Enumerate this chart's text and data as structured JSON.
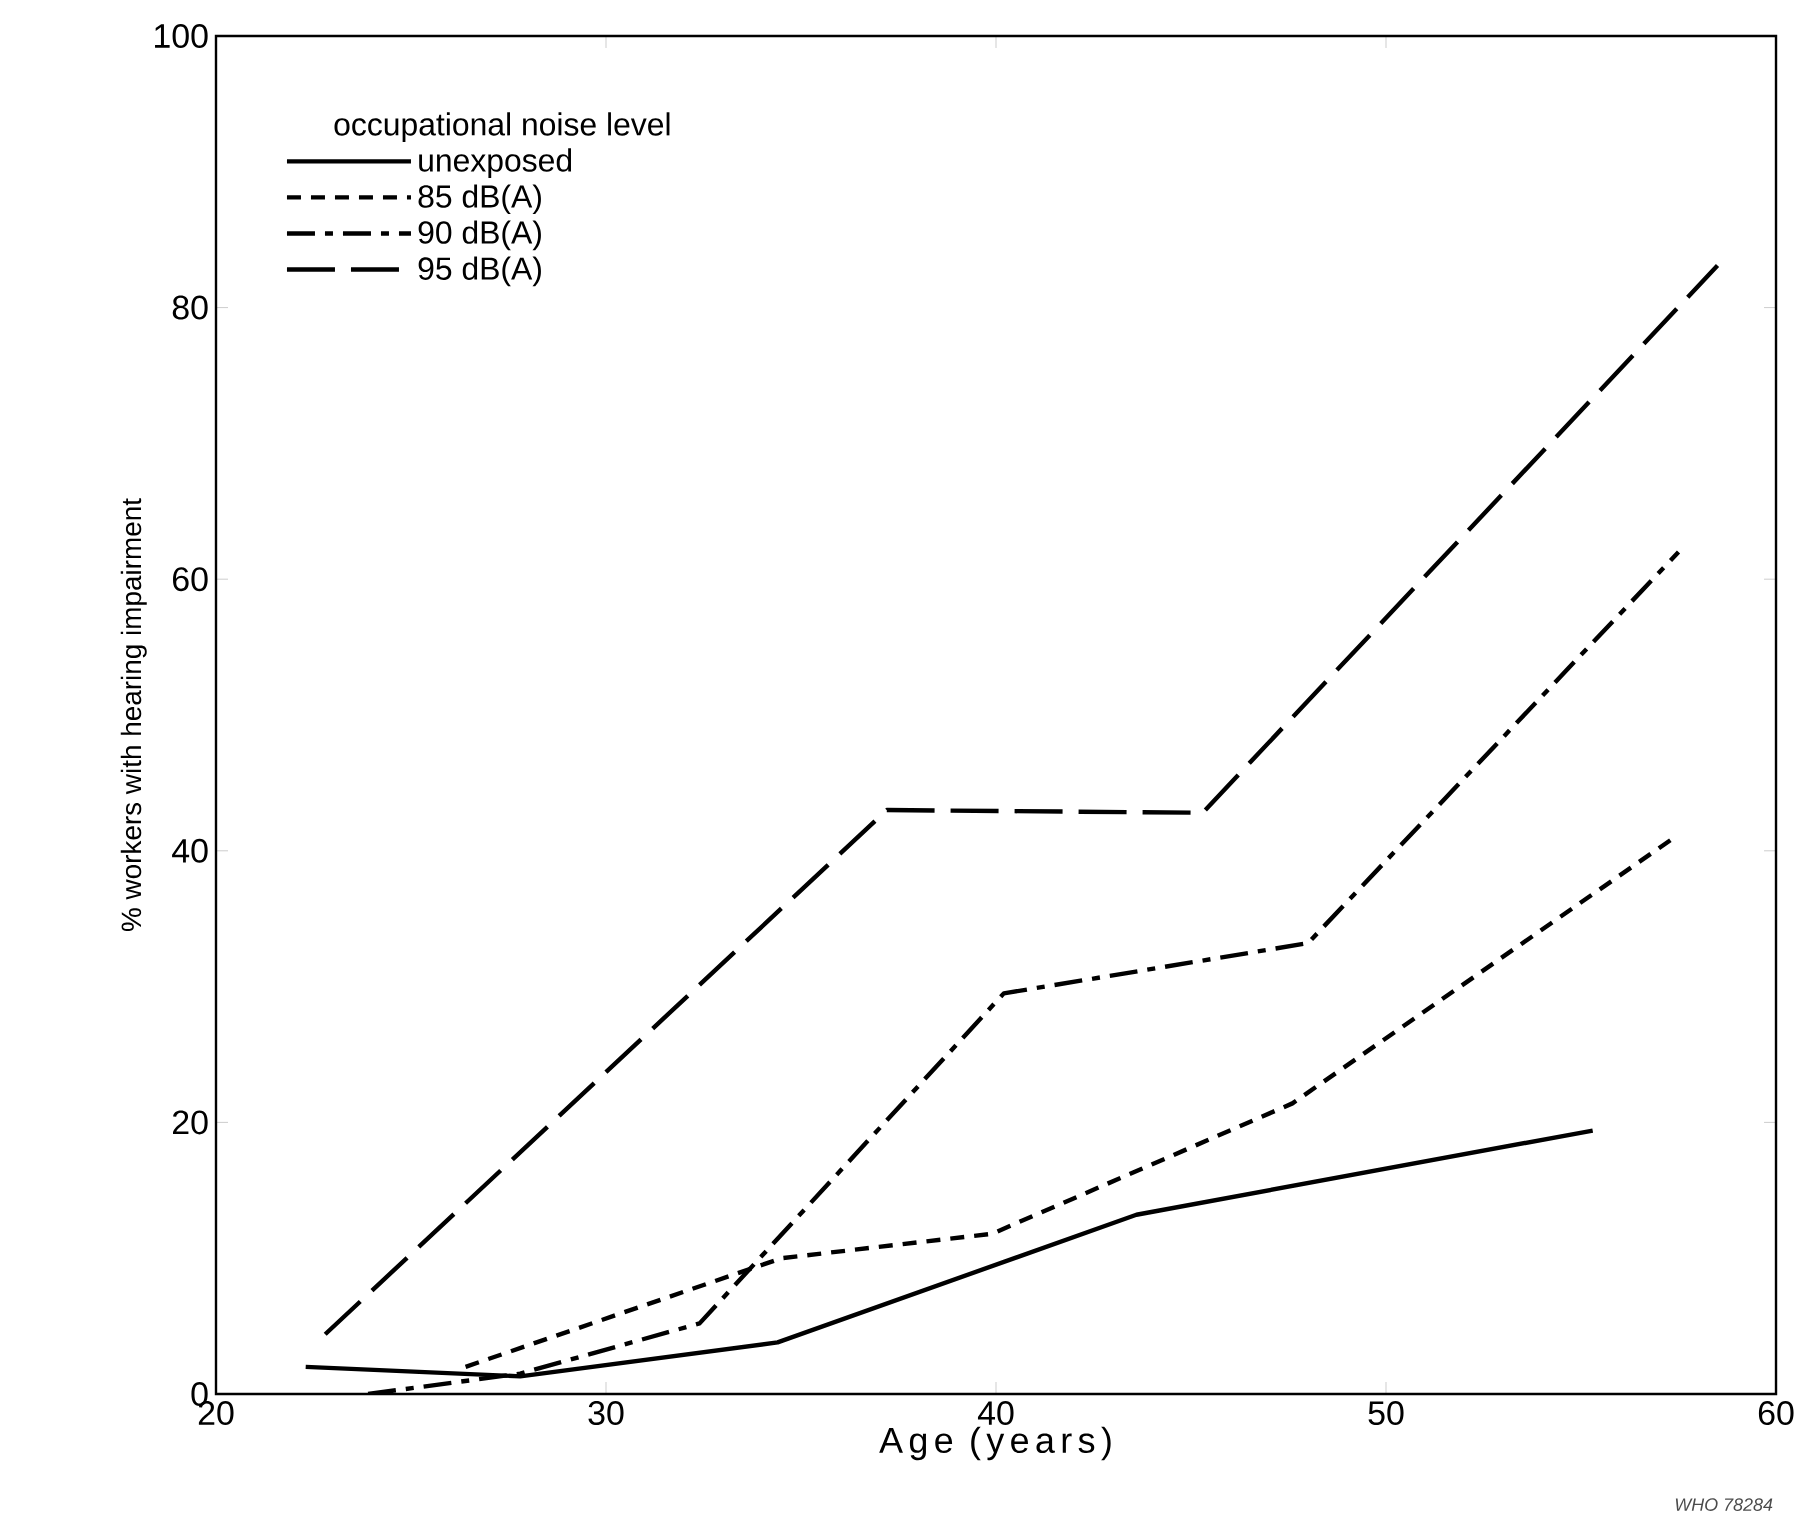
{
  "chart_data": {
    "type": "line",
    "xlabel": "Age (years)",
    "ylabel": "% workers with hearing impairment",
    "legend_title": "occupational noise level",
    "legend": "top left",
    "xlim": [
      20,
      60
    ],
    "ylim": [
      0,
      100
    ],
    "xticks": [
      20,
      30,
      40,
      50,
      60
    ],
    "yticks": [
      0,
      20,
      40,
      60,
      80,
      100
    ],
    "annotations": [
      "WHO 78284"
    ],
    "series": [
      {
        "name": "unexposed",
        "color": "#000000",
        "line_style": "solid",
        "x": [
          22.3,
          27.8,
          34.4,
          43.6,
          55.3
        ],
        "values": [
          2,
          1.3,
          3.8,
          13.2,
          19.4
        ]
      },
      {
        "name": "85 dB(A)",
        "color": "#000000",
        "line_style": "dashed",
        "x": [
          26.4,
          34.5,
          39.9,
          47.6,
          57.5
        ],
        "values": [
          2,
          10,
          11.8,
          21.4,
          41.2
        ]
      },
      {
        "name": "90 dB(A)",
        "color": "#000000",
        "line_style": "dashdot",
        "x": [
          23.9,
          27.8,
          32.4,
          40.2,
          48,
          57.5
        ],
        "values": [
          0,
          1.5,
          5.2,
          29.5,
          33.2,
          62
        ]
      },
      {
        "name": "95 dB(A)",
        "color": "#000000",
        "line_style": "long dashed",
        "x": [
          22.8,
          37.2,
          45.3,
          58.5
        ],
        "values": [
          4.4,
          43,
          42.8,
          83.1
        ]
      }
    ]
  }
}
